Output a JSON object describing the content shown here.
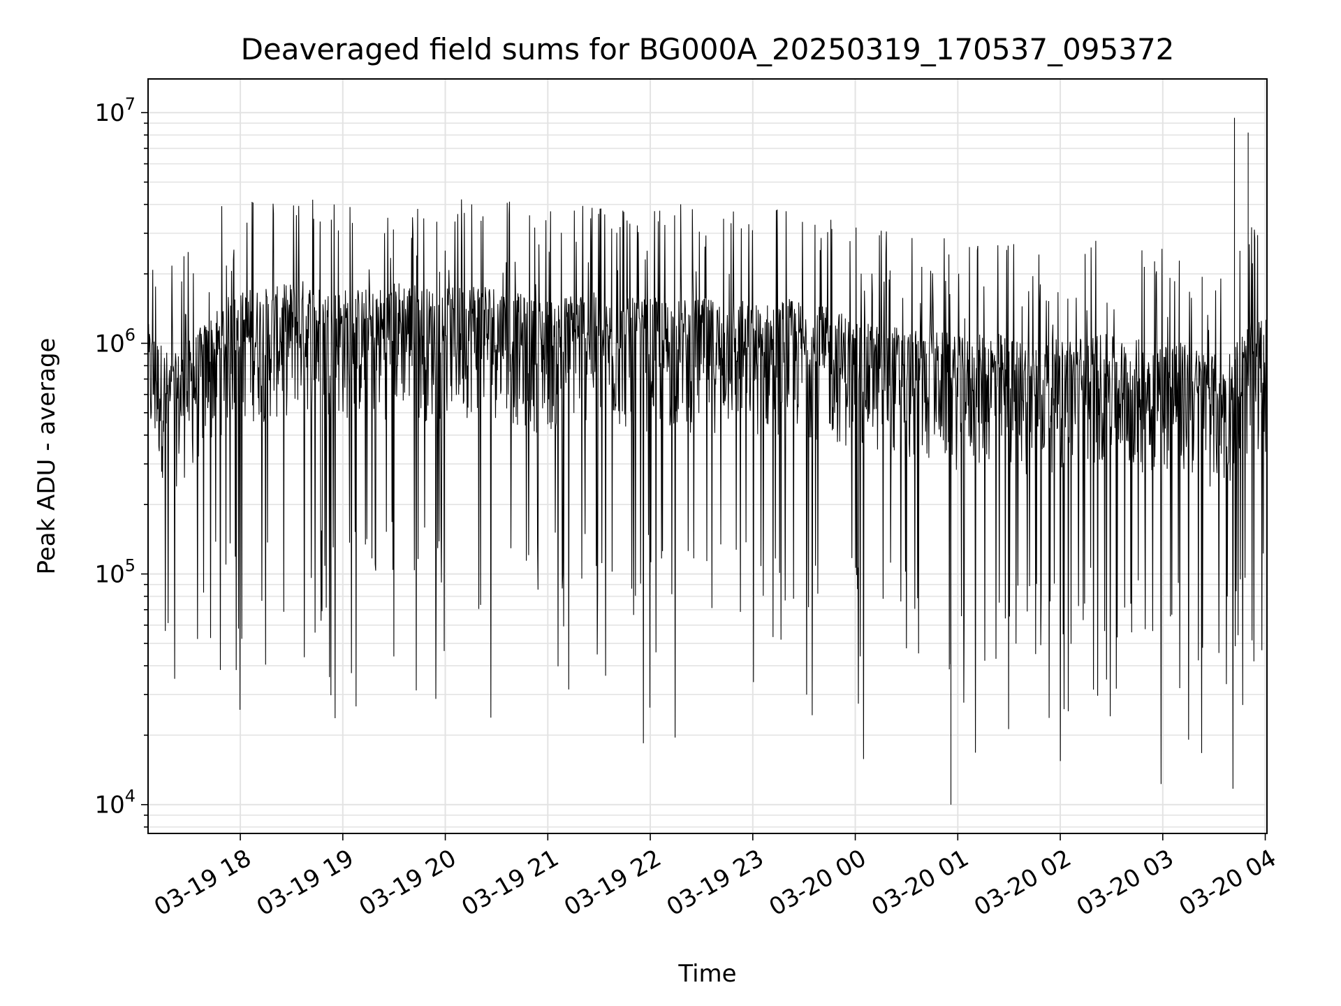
{
  "chart_data": {
    "type": "line",
    "title": "Deaveraged field sums for BG000A_20250319_170537_095372",
    "xlabel": "Time",
    "ylabel": "Peak ADU - average",
    "yscale": "log",
    "ylim": [
      7500,
      14000000
    ],
    "xlim": [
      "2025-03-19 17:06",
      "2025-03-20 04:01"
    ],
    "grid": true,
    "legend": "none",
    "line_color": "#000000",
    "x_ticks": [
      {
        "value": "2025-03-19 18:00",
        "label": "03-19 18"
      },
      {
        "value": "2025-03-19 19:00",
        "label": "03-19 19"
      },
      {
        "value": "2025-03-19 20:00",
        "label": "03-19 20"
      },
      {
        "value": "2025-03-19 21:00",
        "label": "03-19 21"
      },
      {
        "value": "2025-03-19 22:00",
        "label": "03-19 22"
      },
      {
        "value": "2025-03-19 23:00",
        "label": "03-19 23"
      },
      {
        "value": "2025-03-20 00:00",
        "label": "03-20 00"
      },
      {
        "value": "2025-03-20 01:00",
        "label": "03-20 01"
      },
      {
        "value": "2025-03-20 02:00",
        "label": "03-20 02"
      },
      {
        "value": "2025-03-20 03:00",
        "label": "03-20 03"
      },
      {
        "value": "2025-03-20 04:00",
        "label": "03-20 04"
      }
    ],
    "y_ticks": [
      {
        "value": 10000,
        "base": "10",
        "exp": "4"
      },
      {
        "value": 100000,
        "base": "10",
        "exp": "5"
      },
      {
        "value": 1000000,
        "base": "10",
        "exp": "6"
      },
      {
        "value": 10000000,
        "base": "10",
        "exp": "7"
      }
    ],
    "series": [
      {
        "x": [
          "2025-03-19 17:06",
          "2025-03-19 17:20",
          "2025-03-19 17:35",
          "2025-03-19 17:50",
          "2025-03-19 18:05",
          "2025-03-19 18:20",
          "2025-03-19 18:35",
          "2025-03-19 18:50",
          "2025-03-19 19:05",
          "2025-03-19 19:20",
          "2025-03-19 19:35",
          "2025-03-19 19:50",
          "2025-03-19 20:05",
          "2025-03-19 20:20",
          "2025-03-19 20:35",
          "2025-03-19 20:50",
          "2025-03-19 21:05",
          "2025-03-19 21:20",
          "2025-03-19 21:35",
          "2025-03-19 21:50",
          "2025-03-19 22:05",
          "2025-03-19 22:20",
          "2025-03-19 22:35",
          "2025-03-19 22:50",
          "2025-03-19 23:05",
          "2025-03-19 23:20",
          "2025-03-19 23:35",
          "2025-03-19 23:50",
          "2025-03-20 00:05",
          "2025-03-20 00:20",
          "2025-03-20 00:35",
          "2025-03-20 00:50",
          "2025-03-20 01:05",
          "2025-03-20 01:20",
          "2025-03-20 01:35",
          "2025-03-20 01:50",
          "2025-03-20 02:05",
          "2025-03-20 02:20",
          "2025-03-20 02:35",
          "2025-03-20 02:50",
          "2025-03-20 03:05",
          "2025-03-20 03:20",
          "2025-03-20 03:35",
          "2025-03-20 03:50",
          "2025-03-20 04:01"
        ],
        "y": [
          700000,
          500000,
          650000,
          900000,
          1000000,
          1000000,
          1100000,
          1000000,
          1000000,
          1000000,
          1100000,
          1000000,
          1000000,
          1100000,
          1000000,
          900000,
          900000,
          1000000,
          900000,
          900000,
          900000,
          900000,
          900000,
          900000,
          850000,
          900000,
          850000,
          800000,
          700000,
          700000,
          650000,
          650000,
          600000,
          650000,
          600000,
          600000,
          600000,
          650000,
          600000,
          600000,
          600000,
          550000,
          500000,
          700000,
          750000
        ],
        "max": 9500000,
        "min": 10000
      }
    ]
  }
}
